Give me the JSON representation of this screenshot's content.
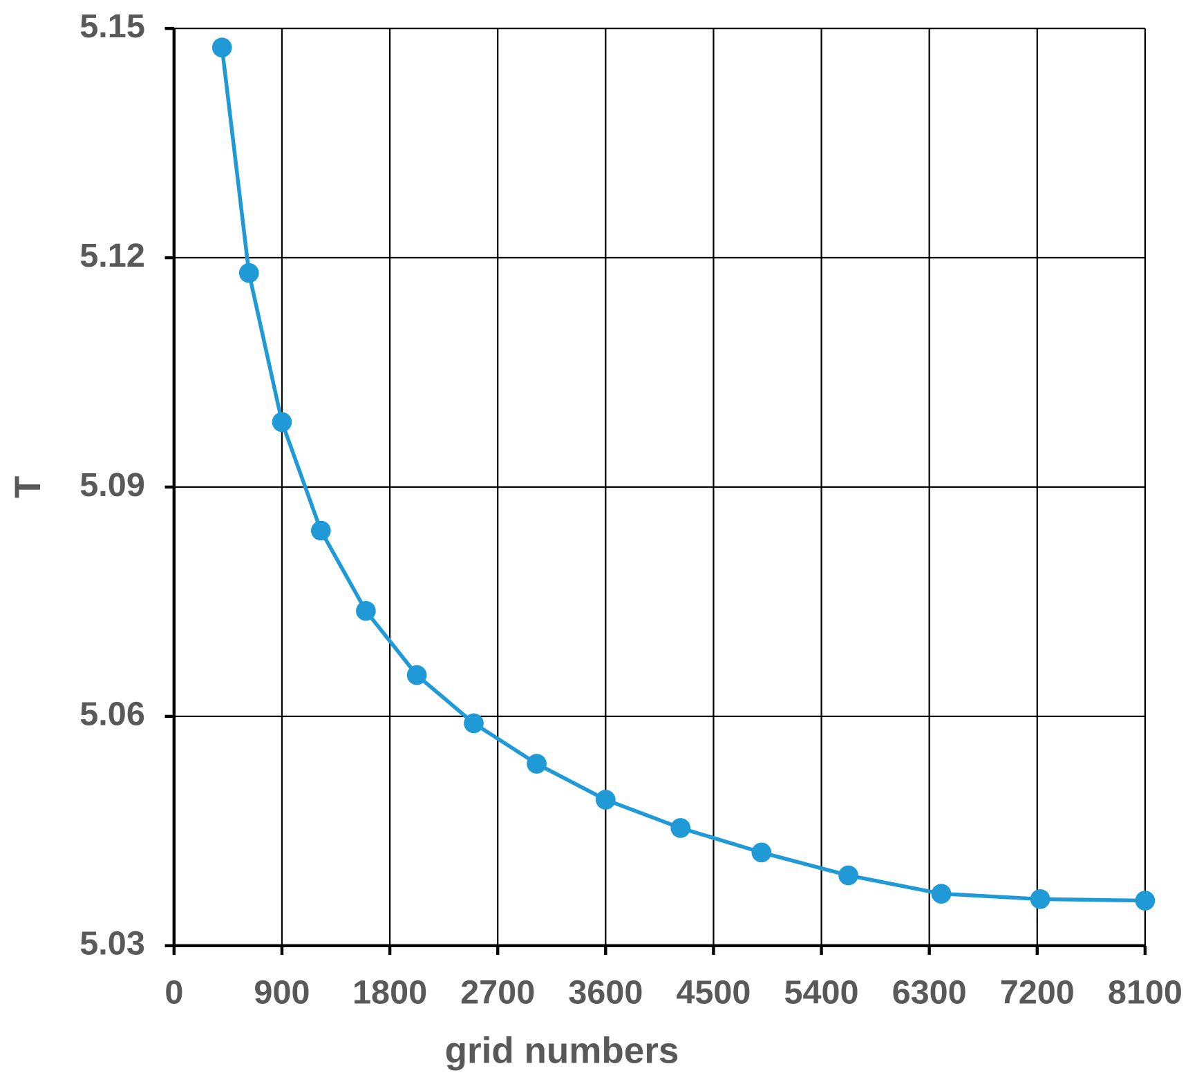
{
  "chart_data": {
    "type": "line",
    "xlabel": "grid numbers",
    "ylabel": "T",
    "x": [
      400,
      625,
      900,
      1225,
      1600,
      2025,
      2500,
      3025,
      3600,
      4225,
      4900,
      5625,
      6400,
      7225,
      8100
    ],
    "series": [
      {
        "color": "#1f9ad6",
        "values": [
          5.1475,
          5.118,
          5.0985,
          5.0843,
          5.0738,
          5.0654,
          5.0591,
          5.0538,
          5.0491,
          5.0454,
          5.0422,
          5.0392,
          5.0368,
          5.0361,
          5.0359
        ]
      }
    ],
    "xlim": [
      0,
      8100
    ],
    "xticks": [
      0,
      900,
      1800,
      2700,
      3600,
      4500,
      5400,
      6300,
      7200,
      8100
    ],
    "ylim": [
      5.03,
      5.15
    ],
    "yticks": [
      5.03,
      5.06,
      5.09,
      5.12,
      5.15
    ],
    "grid": true
  }
}
